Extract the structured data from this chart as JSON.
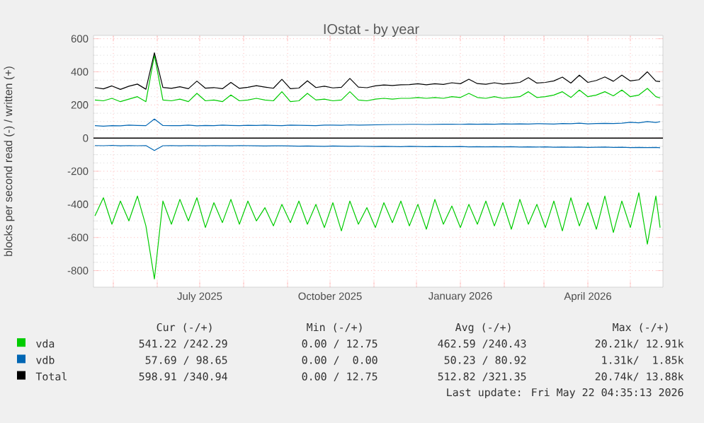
{
  "chart_data": {
    "type": "line",
    "title": "IOstat - by year",
    "ylabel": "blocks per second read (-) / written (+)",
    "x": [
      "2025-04-18",
      "2025-04-24",
      "2025-04-30",
      "2025-05-06",
      "2025-05-12",
      "2025-05-18",
      "2025-05-24",
      "2025-05-30",
      "2025-06-05",
      "2025-06-11",
      "2025-06-17",
      "2025-06-23",
      "2025-06-29",
      "2025-07-05",
      "2025-07-11",
      "2025-07-17",
      "2025-07-23",
      "2025-07-29",
      "2025-08-04",
      "2025-08-10",
      "2025-08-16",
      "2025-08-22",
      "2025-08-28",
      "2025-09-03",
      "2025-09-09",
      "2025-09-15",
      "2025-09-21",
      "2025-09-27",
      "2025-10-03",
      "2025-10-09",
      "2025-10-15",
      "2025-10-21",
      "2025-10-27",
      "2025-11-02",
      "2025-11-08",
      "2025-11-14",
      "2025-11-20",
      "2025-11-26",
      "2025-12-02",
      "2025-12-08",
      "2025-12-14",
      "2025-12-20",
      "2025-12-26",
      "2026-01-01",
      "2026-01-07",
      "2026-01-13",
      "2026-01-19",
      "2026-01-25",
      "2026-01-31",
      "2026-02-06",
      "2026-02-12",
      "2026-02-18",
      "2026-02-24",
      "2026-03-02",
      "2026-03-08",
      "2026-03-14",
      "2026-03-20",
      "2026-03-26",
      "2026-04-01",
      "2026-04-07",
      "2026-04-13",
      "2026-04-19",
      "2026-04-25",
      "2026-05-01",
      "2026-05-07",
      "2026-05-13",
      "2026-05-19",
      "2026-05-22"
    ],
    "series": [
      {
        "name": "vda",
        "color": "#00cc00",
        "values": [
          230,
          225,
          240,
          220,
          235,
          250,
          220,
          500,
          230,
          225,
          235,
          220,
          270,
          225,
          230,
          220,
          260,
          225,
          230,
          240,
          230,
          225,
          280,
          220,
          225,
          270,
          230,
          235,
          225,
          230,
          280,
          230,
          225,
          235,
          240,
          235,
          240,
          240,
          245,
          240,
          245,
          240,
          250,
          245,
          270,
          245,
          240,
          250,
          240,
          245,
          250,
          280,
          245,
          250,
          260,
          280,
          245,
          290,
          250,
          260,
          280,
          255,
          290,
          250,
          260,
          300,
          250,
          242
        ]
      },
      {
        "color": "#00cc00",
        "values": [
          -470,
          -360,
          -520,
          -380,
          -500,
          -350,
          -530,
          -850,
          -380,
          -520,
          -370,
          -500,
          -360,
          -540,
          -390,
          -510,
          -370,
          -520,
          -380,
          -500,
          -420,
          -530,
          -400,
          -510,
          -380,
          -520,
          -400,
          -540,
          -390,
          -560,
          -380,
          -520,
          -420,
          -540,
          -390,
          -510,
          -380,
          -530,
          -400,
          -550,
          -370,
          -520,
          -410,
          -540,
          -400,
          -520,
          -380,
          -530,
          -390,
          -550,
          -370,
          -520,
          -400,
          -540,
          -380,
          -560,
          -360,
          -530,
          -390,
          -550,
          -350,
          -570,
          -380,
          -540,
          -330,
          -640,
          -350,
          -541
        ]
      },
      {
        "name": "vdb",
        "color": "#0066b3",
        "values": [
          75,
          72,
          75,
          74,
          78,
          76,
          75,
          115,
          76,
          75,
          75,
          78,
          74,
          76,
          75,
          78,
          76,
          75,
          77,
          76,
          78,
          76,
          75,
          78,
          77,
          76,
          75,
          78,
          78,
          77,
          80,
          78,
          79,
          80,
          81,
          82,
          82,
          83,
          83,
          82,
          83,
          84,
          84,
          83,
          85,
          84,
          85,
          84,
          86,
          85,
          86,
          85,
          87,
          86,
          85,
          88,
          87,
          90,
          86,
          88,
          89,
          88,
          90,
          95,
          92,
          100,
          94,
          99
        ]
      },
      {
        "color": "#0066b3",
        "values": [
          -45,
          -46,
          -44,
          -47,
          -45,
          -46,
          -45,
          -75,
          -46,
          -45,
          -47,
          -45,
          -46,
          -47,
          -45,
          -46,
          -47,
          -45,
          -46,
          -47,
          -48,
          -47,
          -47,
          -48,
          -49,
          -48,
          -49,
          -50,
          -48,
          -49,
          -50,
          -49,
          -50,
          -51,
          -50,
          -51,
          -52,
          -50,
          -51,
          -52,
          -51,
          -52,
          -52,
          -51,
          -53,
          -52,
          -53,
          -52,
          -53,
          -52,
          -54,
          -53,
          -54,
          -53,
          -55,
          -54,
          -55,
          -54,
          -56,
          -55,
          -54,
          -56,
          -55,
          -57,
          -56,
          -57,
          -56,
          -58
        ]
      },
      {
        "name": "Total",
        "color": "#000000",
        "values": [
          305,
          297,
          315,
          294,
          313,
          326,
          295,
          515,
          306,
          300,
          310,
          298,
          344,
          301,
          305,
          298,
          336,
          300,
          307,
          316,
          308,
          301,
          355,
          298,
          302,
          346,
          305,
          313,
          303,
          307,
          360,
          308,
          304,
          315,
          321,
          317,
          322,
          323,
          328,
          322,
          328,
          324,
          334,
          328,
          355,
          329,
          325,
          334,
          326,
          330,
          336,
          365,
          332,
          336,
          345,
          368,
          332,
          380,
          336,
          348,
          369,
          343,
          380,
          345,
          352,
          400,
          344,
          341
        ]
      }
    ],
    "xlim": [
      "2025-04-17",
      "2026-05-24"
    ],
    "xticks": [
      {
        "value": "2025-05-01",
        "label": null
      },
      {
        "value": "2025-06-01",
        "label": null
      },
      {
        "value": "2025-07-01",
        "label": "July 2025"
      },
      {
        "value": "2025-08-01",
        "label": null
      },
      {
        "value": "2025-09-01",
        "label": null
      },
      {
        "value": "2025-10-01",
        "label": "October 2025"
      },
      {
        "value": "2025-11-01",
        "label": null
      },
      {
        "value": "2025-12-01",
        "label": null
      },
      {
        "value": "2026-01-01",
        "label": "January 2026"
      },
      {
        "value": "2026-02-01",
        "label": null
      },
      {
        "value": "2026-03-01",
        "label": null
      },
      {
        "value": "2026-04-01",
        "label": "April 2026"
      },
      {
        "value": "2026-05-01",
        "label": null
      }
    ],
    "ylim": [
      -900,
      620
    ],
    "yticks": [
      -800,
      -600,
      -400,
      -200,
      0,
      200,
      400,
      600
    ],
    "ref_lines": [
      {
        "axis": "y",
        "value": 0,
        "color": "#000000"
      }
    ],
    "grid": true,
    "legend": "bottom",
    "marker": "none",
    "line_style": "solid",
    "annotations": [
      "Cur (-/+)",
      "Min (-/+)",
      "Avg (-/+)",
      "Max (-/+)",
      "541.22 /242.29",
      "0.00 / 12.75",
      "462.59 /240.43",
      "20.21k/ 12.91k",
      "57.69 / 98.65",
      "0.00 /  0.00",
      "50.23 / 80.92",
      "1.31k/  1.85k",
      "598.91 /340.94",
      "0.00 / 12.75",
      "512.82 /321.35",
      "20.74k/ 13.88k",
      "Last update: Fri May 22 04:35:13 2026"
    ]
  }
}
